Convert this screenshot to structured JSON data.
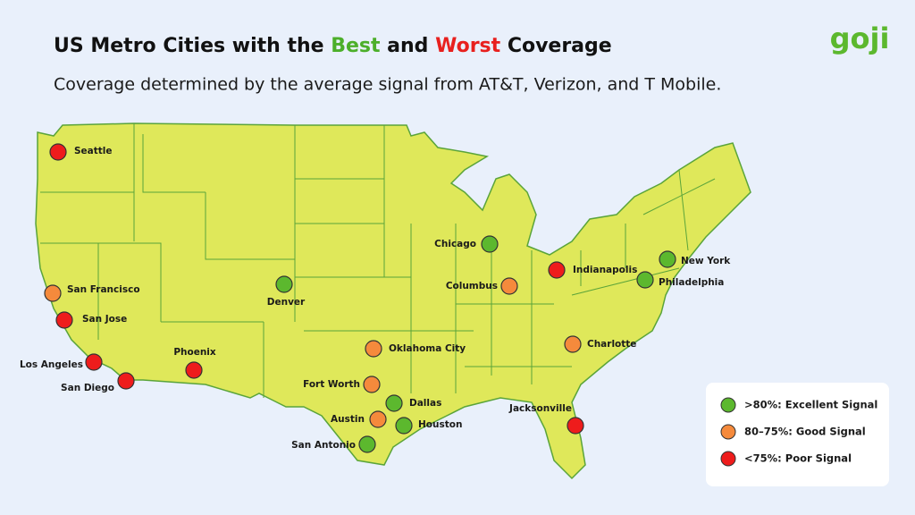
{
  "header": {
    "title_parts": [
      "US Metro Cities with the ",
      "Best",
      " and ",
      "Worst",
      " Coverage"
    ],
    "title_colors": [
      "#111111",
      "#4caf2a",
      "#111111",
      "#e8201e",
      "#111111"
    ],
    "subtitle": "Coverage determined by the average signal from AT&T, Verizon, and T Mobile.",
    "logo": "goji"
  },
  "legend": [
    {
      "label": ">80%: Excellent Signal",
      "color": "#5cb82e",
      "cities": [
        "Denver",
        "Chicago",
        "New York",
        "Philadelphia",
        "Dallas",
        "Houston",
        "San Antonio"
      ]
    },
    {
      "label": "80–75%: Good Signal",
      "color": "#f58a3c",
      "cities": [
        "San Francisco",
        "Oklahoma City",
        "Fort Worth",
        "Austin",
        "Columbus",
        "Charlotte"
      ]
    },
    {
      "label": "<75%: Poor Signal",
      "color": "#ee1c1c",
      "cities": [
        "Seattle",
        "San Jose",
        "Los Angeles",
        "San Diego",
        "Phoenix",
        "Indianapolis",
        "Jacksonville"
      ]
    }
  ]
}
